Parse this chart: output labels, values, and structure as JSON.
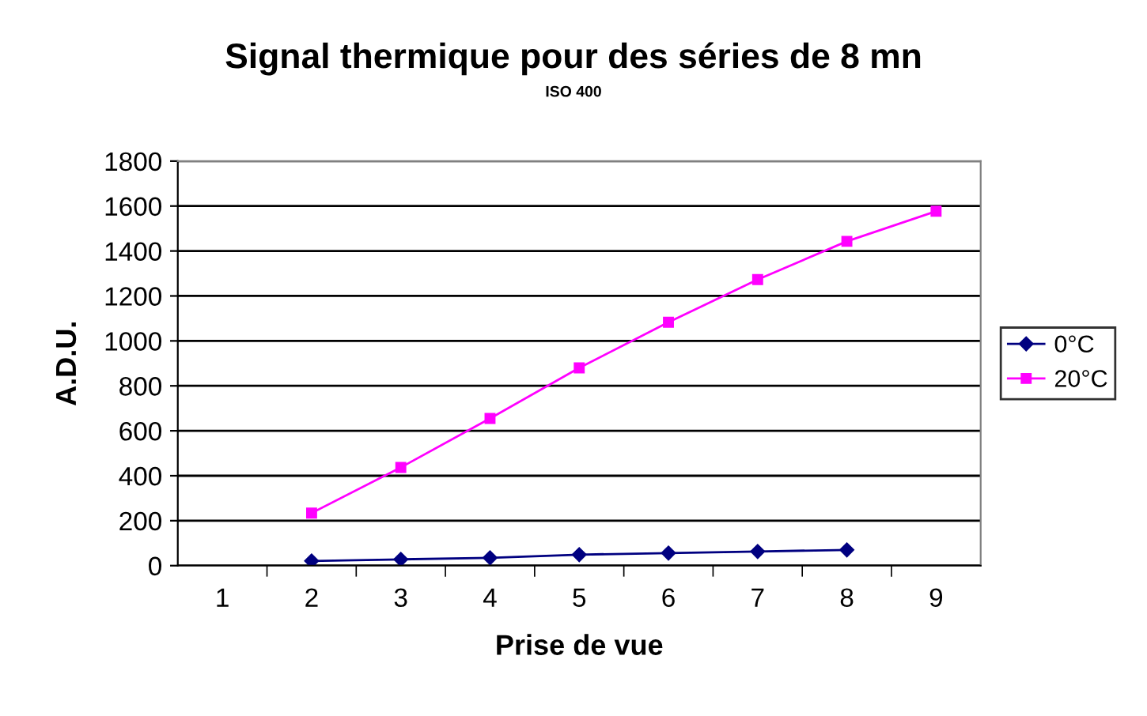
{
  "chart_data": {
    "type": "line",
    "title": "Signal thermique pour des séries de 8 mn",
    "subtitle": "ISO 400",
    "xlabel": "Prise de vue",
    "ylabel": "A.D.U.",
    "categories": [
      "1",
      "2",
      "3",
      "4",
      "5",
      "6",
      "7",
      "8",
      "9"
    ],
    "series": [
      {
        "name": "0°C",
        "color": "#000080",
        "marker": "diamond",
        "values": [
          null,
          21,
          28,
          35,
          49,
          56,
          63,
          70,
          null
        ]
      },
      {
        "name": "20°C",
        "color": "#ff00ff",
        "marker": "square",
        "values": [
          null,
          234,
          437,
          655,
          880,
          1083,
          1273,
          1443,
          1577
        ]
      }
    ],
    "ylim": [
      0,
      1800
    ],
    "yticks": [
      0,
      200,
      400,
      600,
      800,
      1000,
      1200,
      1400,
      1600,
      1800
    ],
    "grid": "y",
    "legend": "right",
    "line_style": "solid"
  }
}
